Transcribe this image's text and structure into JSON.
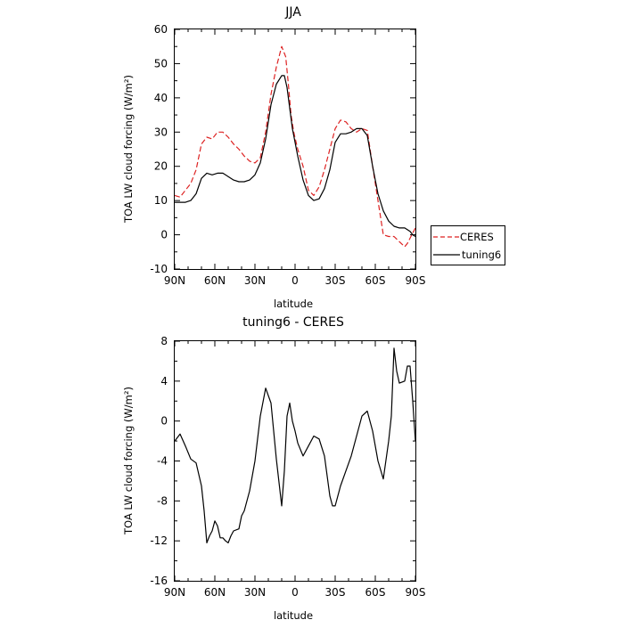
{
  "chart_data": [
    {
      "type": "line",
      "title": "JJA",
      "xlabel": "latitude",
      "ylabel": "TOA LW cloud forcing (W/m²)",
      "x_ticks": [
        90,
        60,
        30,
        0,
        -30,
        -60,
        -90
      ],
      "x_tick_labels": [
        "90N",
        "60N",
        "30N",
        "0",
        "30S",
        "60S",
        "90S"
      ],
      "xlim": [
        90,
        -90
      ],
      "ylim": [
        -10,
        60
      ],
      "y_ticks": [
        -10,
        0,
        10,
        20,
        30,
        40,
        50,
        60
      ],
      "y_tick_labels": [
        "-10",
        "0",
        "10",
        "20",
        "30",
        "40",
        "50",
        "60"
      ],
      "legend_position": "outside-right",
      "series": [
        {
          "name": "CERES",
          "color": "#dd2222",
          "dash": "dashed",
          "x": [
            90,
            86,
            82,
            78,
            74,
            70,
            66,
            62,
            58,
            54,
            50,
            46,
            42,
            38,
            34,
            30,
            26,
            22,
            18,
            14,
            10,
            7,
            5,
            3,
            1,
            -2,
            -6,
            -10,
            -14,
            -18,
            -22,
            -26,
            -30,
            -34,
            -38,
            -42,
            -46,
            -50,
            -54,
            -58,
            -62,
            -66,
            -70,
            -74,
            -78,
            -82,
            -84,
            -86,
            -88,
            -90
          ],
          "y": [
            11.5,
            11,
            13,
            15,
            19,
            26.5,
            28.5,
            28,
            30,
            30,
            28.5,
            26.5,
            25,
            23,
            21.5,
            21,
            22.5,
            30,
            41,
            49,
            55,
            52,
            44,
            35,
            30,
            25,
            20,
            13,
            11.5,
            14,
            19,
            25,
            31,
            33.5,
            33,
            31,
            30,
            31,
            30.5,
            20,
            10,
            0,
            -0.5,
            -0.5,
            -2,
            -3.5,
            -2.5,
            -1,
            0.5,
            2
          ]
        },
        {
          "name": "tuning6",
          "color": "#000000",
          "dash": "solid",
          "x": [
            90,
            86,
            82,
            78,
            74,
            70,
            66,
            62,
            58,
            54,
            50,
            46,
            42,
            38,
            34,
            30,
            26,
            22,
            18,
            14,
            10,
            8,
            6,
            4,
            2,
            0,
            -2,
            -6,
            -10,
            -14,
            -18,
            -22,
            -26,
            -30,
            -34,
            -38,
            -42,
            -46,
            -50,
            -54,
            -58,
            -62,
            -66,
            -70,
            -74,
            -78,
            -82,
            -86,
            -88,
            -90
          ],
          "y": [
            9.5,
            9.5,
            9.5,
            10,
            12,
            16.5,
            18,
            17.5,
            18,
            18,
            17,
            16,
            15.5,
            15.5,
            16,
            17.5,
            21,
            28,
            38,
            44,
            46.5,
            46.5,
            43,
            37,
            31,
            27,
            23,
            16,
            11.5,
            10,
            10.5,
            13.5,
            19,
            27,
            29.5,
            29.5,
            30,
            31,
            31,
            29,
            20,
            12,
            7,
            4,
            2.5,
            2,
            2,
            1,
            0,
            -0.5
          ]
        }
      ]
    },
    {
      "type": "line",
      "title": "tuning6 - CERES",
      "xlabel": "latitude",
      "ylabel": "TOA LW cloud forcing (W/m²)",
      "x_ticks": [
        90,
        60,
        30,
        0,
        -30,
        -60,
        -90
      ],
      "x_tick_labels": [
        "90N",
        "60N",
        "30N",
        "0",
        "30S",
        "60S",
        "90S"
      ],
      "xlim": [
        90,
        -90
      ],
      "ylim": [
        -16,
        8
      ],
      "y_ticks": [
        -16,
        -12,
        -8,
        -4,
        0,
        4,
        8
      ],
      "y_tick_labels": [
        "-16",
        "-12",
        "-8",
        "-4",
        "0",
        "4",
        "8"
      ],
      "series": [
        {
          "color": "#000000",
          "dash": "solid",
          "x": [
            90,
            86,
            82,
            78,
            74,
            70,
            68,
            66,
            64,
            62,
            60,
            58,
            56,
            54,
            52,
            50,
            48,
            46,
            42,
            40,
            38,
            34,
            30,
            26,
            22,
            18,
            16,
            14,
            10,
            8,
            6,
            4,
            2,
            0,
            -2,
            -6,
            -10,
            -14,
            -18,
            -22,
            -26,
            -28,
            -30,
            -34,
            -38,
            -42,
            -46,
            -50,
            -54,
            -58,
            -62,
            -66,
            -70,
            -72,
            -74,
            -76,
            -78,
            -82,
            -84,
            -86,
            -88,
            -90
          ],
          "y": [
            -2,
            -1.3,
            -2.5,
            -3.8,
            -4.2,
            -6.5,
            -9,
            -12.2,
            -11.5,
            -11,
            -10,
            -10.5,
            -11.7,
            -11.7,
            -12,
            -12.2,
            -11.5,
            -11,
            -10.8,
            -9.5,
            -9,
            -7,
            -4,
            0.5,
            3.3,
            1.8,
            -1,
            -3.8,
            -8.5,
            -5,
            0.5,
            1.8,
            0,
            -1,
            -2.2,
            -3.5,
            -2.5,
            -1.5,
            -1.8,
            -3.5,
            -7.5,
            -8.5,
            -8.5,
            -6.5,
            -5,
            -3.5,
            -1.5,
            0.5,
            1,
            -1,
            -4,
            -5.8,
            -2,
            0.5,
            7.3,
            5,
            3.8,
            4,
            5.5,
            5.5,
            2,
            -2
          ]
        }
      ]
    }
  ]
}
